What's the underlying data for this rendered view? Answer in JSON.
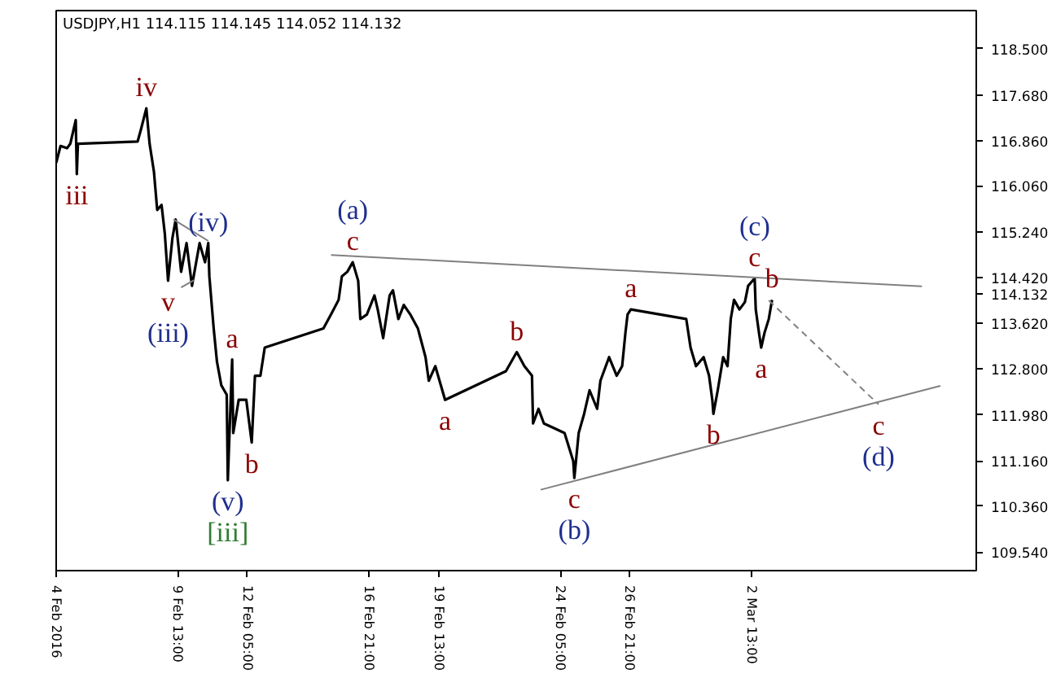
{
  "chart_data": {
    "type": "line",
    "title": "USDJPY,H1  114.115 114.145 114.052 114.132",
    "xlim": [
      "2016-02-04T21:00",
      "2016-03-11T04:00"
    ],
    "ylim": [
      109.21,
      119.18
    ],
    "xticks": [
      {
        "value": "2016-02-04T21:00",
        "label": "4 Feb 2016"
      },
      {
        "value": "2016-02-09T13:00",
        "label": "9 Feb 13:00"
      },
      {
        "value": "2016-02-12T05:00",
        "label": "12 Feb 05:00"
      },
      {
        "value": "2016-02-16T21:00",
        "label": "16 Feb 21:00"
      },
      {
        "value": "2016-02-19T13:00",
        "label": "19 Feb 13:00"
      },
      {
        "value": "2016-02-24T05:00",
        "label": "24 Feb 05:00"
      },
      {
        "value": "2016-02-26T21:00",
        "label": "26 Feb 21:00"
      },
      {
        "value": "2016-03-02T13:00",
        "label": "2 Mar 13:00"
      }
    ],
    "yticks": [
      {
        "value": 118.5,
        "label": "118.500"
      },
      {
        "value": 117.68,
        "label": "117.680"
      },
      {
        "value": 116.86,
        "label": "116.860"
      },
      {
        "value": 116.06,
        "label": "116.060"
      },
      {
        "value": 115.24,
        "label": "115.240"
      },
      {
        "value": 114.42,
        "label": "114.420"
      },
      {
        "value": 114.132,
        "label": "114.132"
      },
      {
        "value": 113.62,
        "label": "113.620"
      },
      {
        "value": 112.8,
        "label": "112.800"
      },
      {
        "value": 111.98,
        "label": "111.980"
      },
      {
        "value": 111.16,
        "label": "111.160"
      },
      {
        "value": 110.36,
        "label": "110.360"
      },
      {
        "value": 109.54,
        "label": "109.540"
      }
    ],
    "grid": false,
    "series": [
      {
        "color": "#000000",
        "x": [
          "2016-02-04T21:00",
          "2016-02-05T01:00",
          "2016-02-05T07:00",
          "2016-02-05T10:00",
          "2016-02-05T15:00",
          "2016-02-05T16:00",
          "2016-02-05T17:00",
          "2016-02-08T00:00",
          "2016-02-08T03:00",
          "2016-02-08T08:00",
          "2016-02-08T11:00",
          "2016-02-08T15:00",
          "2016-02-08T18:00",
          "2016-02-08T22:00",
          "2016-02-09T01:00",
          "2016-02-09T04:00",
          "2016-02-09T08:00",
          "2016-02-09T11:00",
          "2016-02-09T16:00",
          "2016-02-09T21:00",
          "2016-02-10T02:00",
          "2016-02-10T09:00",
          "2016-02-10T14:00",
          "2016-02-10T17:00",
          "2016-02-10T18:00",
          "2016-02-10T22:00",
          "2016-02-11T01:00",
          "2016-02-11T05:00",
          "2016-02-11T10:00",
          "2016-02-11T11:00",
          "2016-02-11T15:00",
          "2016-02-11T16:00",
          "2016-02-11T21:00",
          "2016-02-12T04:00",
          "2016-02-12T09:00",
          "2016-02-12T12:00",
          "2016-02-12T17:00",
          "2016-02-12T21:00",
          "2016-02-15T03:00",
          "2016-02-15T10:00",
          "2016-02-15T17:00",
          "2016-02-15T20:00",
          "2016-02-16T01:00",
          "2016-02-16T06:00",
          "2016-02-16T11:00",
          "2016-02-16T13:00",
          "2016-02-16T19:00",
          "2016-02-17T02:00",
          "2016-02-17T05:00",
          "2016-02-17T10:00",
          "2016-02-17T16:00",
          "2016-02-17T19:00",
          "2016-02-18T00:00",
          "2016-02-18T05:00",
          "2016-02-18T11:00",
          "2016-02-18T18:00",
          "2016-02-19T01:00",
          "2016-02-19T04:00",
          "2016-02-19T10:00",
          "2016-02-19T19:00",
          "2016-02-22T03:00",
          "2016-02-22T13:00",
          "2016-02-22T20:00",
          "2016-02-23T03:00",
          "2016-02-23T04:00",
          "2016-02-23T09:00",
          "2016-02-23T14:00",
          "2016-02-23T23:00",
          "2016-02-24T09:00",
          "2016-02-24T17:00",
          "2016-02-24T18:00",
          "2016-02-24T22:00",
          "2016-02-25T03:00",
          "2016-02-25T08:00",
          "2016-02-25T15:00",
          "2016-02-25T18:00",
          "2016-02-26T02:00",
          "2016-02-26T09:00",
          "2016-02-26T14:00",
          "2016-02-26T17:00",
          "2016-02-26T19:00",
          "2016-02-26T22:00",
          "2016-02-29T01:00",
          "2016-02-29T05:00",
          "2016-02-29T10:00",
          "2016-02-29T17:00",
          "2016-02-29T22:00",
          "2016-03-01T01:00",
          "2016-03-01T02:00",
          "2016-03-01T06:00",
          "2016-03-01T11:00",
          "2016-03-01T15:00",
          "2016-03-01T18:00",
          "2016-03-01T21:00",
          "2016-03-02T02:00",
          "2016-03-02T07:00",
          "2016-03-02T10:00",
          "2016-03-02T14:00",
          "2016-03-02T16:00",
          "2016-03-02T17:00",
          "2016-03-02T20:00",
          "2016-03-02T22:00",
          "2016-03-03T01:00",
          "2016-03-03T05:00",
          "2016-03-03T08:00"
        ],
        "values": [
          116.47,
          116.77,
          116.73,
          116.81,
          117.23,
          116.27,
          116.81,
          116.85,
          117.06,
          117.44,
          116.81,
          116.31,
          115.63,
          115.72,
          115.21,
          114.37,
          115.13,
          115.46,
          114.53,
          115.04,
          114.28,
          115.04,
          114.7,
          115.04,
          114.45,
          113.52,
          112.93,
          112.51,
          112.34,
          110.82,
          112.97,
          111.66,
          112.25,
          112.25,
          111.49,
          112.68,
          112.68,
          113.18,
          113.52,
          113.77,
          114.03,
          114.45,
          114.53,
          114.7,
          114.37,
          113.69,
          113.77,
          114.11,
          113.86,
          113.35,
          114.11,
          114.2,
          113.69,
          113.94,
          113.77,
          113.52,
          113.01,
          112.59,
          112.85,
          112.25,
          112.76,
          113.1,
          112.85,
          112.68,
          111.83,
          112.09,
          111.83,
          111.75,
          111.66,
          111.16,
          110.86,
          111.66,
          112.0,
          112.42,
          112.09,
          112.59,
          113.01,
          112.68,
          112.85,
          113.44,
          113.77,
          113.86,
          113.69,
          113.18,
          112.85,
          113.01,
          112.68,
          112.25,
          112.0,
          112.42,
          113.01,
          112.85,
          113.69,
          114.03,
          113.86,
          113.99,
          114.28,
          114.37,
          114.41,
          113.86,
          113.44,
          113.18,
          113.44,
          113.69,
          114.03
        ]
      },
      {
        "color": "#808080",
        "x": [
          "2016-02-15T10:00",
          "2016-03-09T02:00"
        ],
        "values": [
          114.83,
          114.27
        ]
      },
      {
        "color": "#808080",
        "x": [
          "2016-02-23T11:00",
          "2016-03-09T19:00"
        ],
        "values": [
          110.65,
          112.5
        ]
      },
      {
        "color": "#808080",
        "x": [
          "2016-02-09T09:00",
          "2016-02-10T17:00"
        ],
        "values": [
          115.46,
          115.08
        ]
      },
      {
        "color": "#808080",
        "x": [
          "2016-02-09T16:00",
          "2016-02-10T04:00"
        ],
        "values": [
          114.25,
          114.38
        ]
      },
      {
        "color": "#808080",
        "line_style": "dashed",
        "x": [
          "2016-03-03T05:00",
          "2016-03-07T10:00"
        ],
        "values": [
          114.02,
          112.17
        ]
      }
    ],
    "annotations": [
      {
        "text": "iii",
        "x": "2016-02-05T16:00",
        "y": 116.27
      },
      {
        "text": "iv",
        "x": "2016-02-08T08:00",
        "y": 117.44
      },
      {
        "text": "v",
        "x": "2016-02-09T04:00",
        "y": 114.37
      },
      {
        "text": "(iii)",
        "x": "2016-02-09T04:00",
        "y": 114.37
      },
      {
        "text": "(iv)",
        "x": "2016-02-10T17:00",
        "y": 115.04
      },
      {
        "text": "a",
        "x": "2016-02-11T15:00",
        "y": 112.97
      },
      {
        "text": "b",
        "x": "2016-02-12T09:00",
        "y": 111.49
      },
      {
        "text": "(v)",
        "x": "2016-02-11T11:00",
        "y": 110.82
      },
      {
        "text": "[iii]",
        "x": "2016-02-11T11:00",
        "y": 110.82
      },
      {
        "text": "c",
        "x": "2016-02-16T06:00",
        "y": 114.7
      },
      {
        "text": "(a)",
        "x": "2016-02-16T06:00",
        "y": 114.7
      },
      {
        "text": "b",
        "x": "2016-02-22T13:00",
        "y": 113.1
      },
      {
        "text": "a",
        "x": "2016-02-19T19:00",
        "y": 112.25
      },
      {
        "text": "c",
        "x": "2016-02-24T18:00",
        "y": 110.86
      },
      {
        "text": "(b)",
        "x": "2016-02-24T18:00",
        "y": 110.86
      },
      {
        "text": "a",
        "x": "2016-02-26T22:00",
        "y": 113.86
      },
      {
        "text": "b",
        "x": "2016-03-01T02:00",
        "y": 112.0
      },
      {
        "text": "c",
        "x": "2016-03-02T16:00",
        "y": 114.41
      },
      {
        "text": "(c)",
        "x": "2016-03-02T16:00",
        "y": 114.41
      },
      {
        "text": "b",
        "x": "2016-03-03T08:00",
        "y": 114.03
      },
      {
        "text": "a",
        "x": "2016-03-02T22:00",
        "y": 113.18
      },
      {
        "text": "c",
        "x": "2016-03-07T10:00",
        "y": 112.17
      },
      {
        "text": "(d)",
        "x": "2016-03-07T10:00",
        "y": 112.17
      }
    ]
  }
}
